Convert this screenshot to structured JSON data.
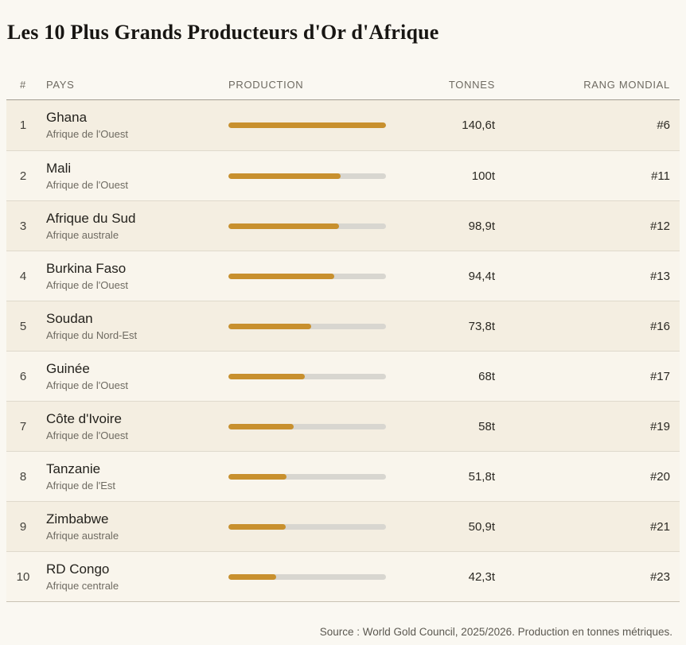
{
  "title": "Les 10 Plus Grands Producteurs d'Or d'Afrique",
  "colors": {
    "bar_fill": "#C8902E",
    "bar_track": "#D8D6D0",
    "row_alt_bg": "#F4EEE1",
    "row_bg": "#F9F5EC",
    "page_bg": "#FAF8F2"
  },
  "table": {
    "headers": {
      "num": "#",
      "pays": "PAYS",
      "production": "PRODUCTION",
      "tonnes": "TONNES",
      "rang": "RANG MONDIAL"
    },
    "rows": [
      {
        "num": "1",
        "country": "Ghana",
        "region": "Afrique de l'Ouest",
        "tonnes": "140,6t",
        "rank": "#6",
        "percent": 100
      },
      {
        "num": "2",
        "country": "Mali",
        "region": "Afrique de l'Ouest",
        "tonnes": "100t",
        "rank": "#11",
        "percent": 71.1
      },
      {
        "num": "3",
        "country": "Afrique du Sud",
        "region": "Afrique australe",
        "tonnes": "98,9t",
        "rank": "#12",
        "percent": 70.3
      },
      {
        "num": "4",
        "country": "Burkina Faso",
        "region": "Afrique de l'Ouest",
        "tonnes": "94,4t",
        "rank": "#13",
        "percent": 67.1
      },
      {
        "num": "5",
        "country": "Soudan",
        "region": "Afrique du Nord-Est",
        "tonnes": "73,8t",
        "rank": "#16",
        "percent": 52.5
      },
      {
        "num": "6",
        "country": "Guinée",
        "region": "Afrique de l'Ouest",
        "tonnes": "68t",
        "rank": "#17",
        "percent": 48.4
      },
      {
        "num": "7",
        "country": "Côte d'Ivoire",
        "region": "Afrique de l'Ouest",
        "tonnes": "58t",
        "rank": "#19",
        "percent": 41.3
      },
      {
        "num": "8",
        "country": "Tanzanie",
        "region": "Afrique de l'Est",
        "tonnes": "51,8t",
        "rank": "#20",
        "percent": 36.8
      },
      {
        "num": "9",
        "country": "Zimbabwe",
        "region": "Afrique australe",
        "tonnes": "50,9t",
        "rank": "#21",
        "percent": 36.2
      },
      {
        "num": "10",
        "country": "RD Congo",
        "region": "Afrique centrale",
        "tonnes": "42,3t",
        "rank": "#23",
        "percent": 30.1
      }
    ]
  },
  "source_note": "Source : World Gold Council, 2025/2026. Production en tonnes métriques.",
  "chart_data": {
    "type": "bar",
    "orientation": "horizontal",
    "title": "Les 10 Plus Grands Producteurs d'Or d'Afrique",
    "categories": [
      "Ghana",
      "Mali",
      "Afrique du Sud",
      "Burkina Faso",
      "Soudan",
      "Guinée",
      "Côte d'Ivoire",
      "Tanzanie",
      "Zimbabwe",
      "RD Congo"
    ],
    "values": [
      140.6,
      100,
      98.9,
      94.4,
      73.8,
      68,
      58,
      51.8,
      50.9,
      42.3
    ],
    "world_ranks": [
      6,
      11,
      12,
      13,
      16,
      17,
      19,
      20,
      21,
      23
    ],
    "regions": [
      "Afrique de l'Ouest",
      "Afrique de l'Ouest",
      "Afrique australe",
      "Afrique de l'Ouest",
      "Afrique du Nord-Est",
      "Afrique de l'Ouest",
      "Afrique de l'Ouest",
      "Afrique de l'Est",
      "Afrique australe",
      "Afrique centrale"
    ],
    "xlabel": "Production (tonnes)",
    "ylabel": "Pays",
    "xlim": [
      0,
      140.6
    ],
    "unit": "t",
    "grid": false,
    "legend": false
  }
}
